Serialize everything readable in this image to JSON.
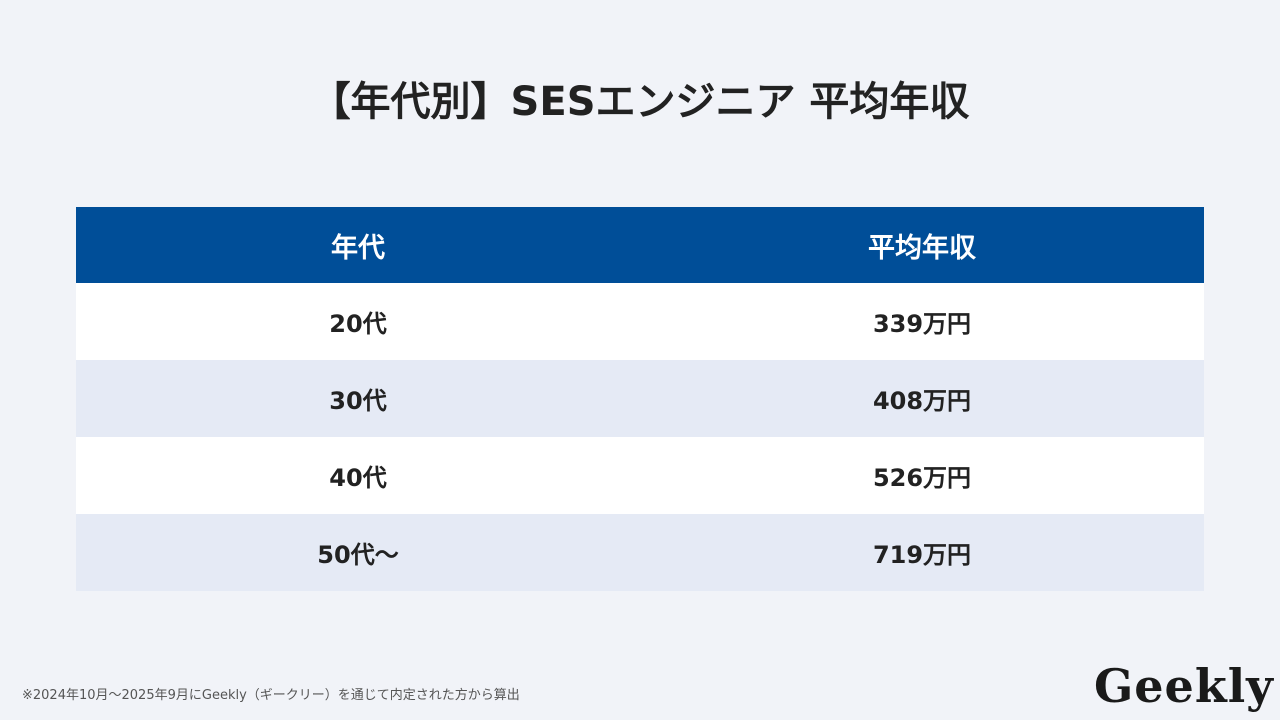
{
  "title": "【年代別】SESエンジニア 平均年収",
  "table": {
    "headers": [
      "年代",
      "平均年収"
    ],
    "rows": [
      {
        "age": "20代",
        "salary": "339万円"
      },
      {
        "age": "30代",
        "salary": "408万円"
      },
      {
        "age": "40代",
        "salary": "526万円"
      },
      {
        "age": "50代〜",
        "salary": "719万円"
      }
    ]
  },
  "footnote": "※2024年10月〜2025年9月にGeekly（ギークリー）を通じて内定された方から算出",
  "logo": "Geekly",
  "colors": {
    "header_bg": "#004e98",
    "row_alt": "#e5eaf5",
    "background": "#f1f3f8"
  }
}
